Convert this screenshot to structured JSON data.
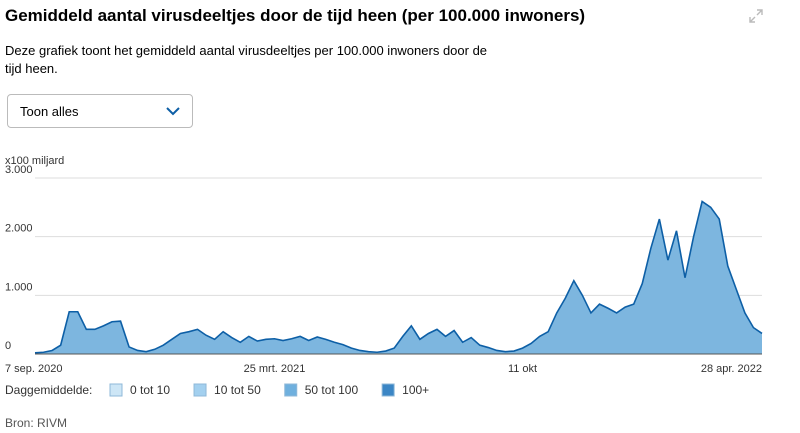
{
  "header": {
    "title": "Gemiddeld aantal virusdeeltjes door de tijd heen (per 100.000 inwoners)",
    "description": "Deze grafiek toont het gemiddeld aantal virusdeeltjes per 100.000 inwoners door de tijd heen."
  },
  "dropdown": {
    "label": "Toon alles"
  },
  "chart_data": {
    "type": "area",
    "y_unit": "x100 miljard",
    "categories": [
      "7 sep. 2020",
      null,
      null,
      null,
      null,
      null,
      null,
      null,
      null,
      null,
      null,
      null,
      null,
      null,
      null,
      null,
      null,
      null,
      null,
      null,
      null,
      null,
      null,
      null,
      null,
      null,
      null,
      null,
      "25 mrt. 2021",
      null,
      null,
      null,
      null,
      null,
      null,
      null,
      null,
      null,
      null,
      null,
      null,
      null,
      null,
      null,
      null,
      null,
      null,
      null,
      null,
      null,
      null,
      null,
      null,
      null,
      null,
      null,
      null,
      "11 okt",
      null,
      null,
      null,
      null,
      null,
      null,
      null,
      null,
      null,
      null,
      null,
      null,
      null,
      null,
      null,
      null,
      null,
      null,
      null,
      null,
      null,
      null,
      null,
      null,
      null,
      null,
      null,
      "28 apr. 2022"
    ],
    "values": [
      20,
      30,
      60,
      150,
      720,
      720,
      420,
      420,
      480,
      550,
      560,
      120,
      60,
      40,
      80,
      150,
      250,
      350,
      380,
      420,
      320,
      250,
      380,
      280,
      200,
      300,
      220,
      250,
      260,
      230,
      260,
      300,
      230,
      290,
      250,
      200,
      160,
      100,
      60,
      40,
      30,
      50,
      100,
      300,
      480,
      250,
      350,
      420,
      300,
      400,
      200,
      280,
      150,
      110,
      60,
      40,
      50,
      100,
      180,
      300,
      380,
      700,
      950,
      1250,
      1000,
      700,
      850,
      780,
      700,
      800,
      850,
      1200,
      1800,
      2300,
      1600,
      2100,
      1300,
      2000,
      2600,
      2500,
      2300,
      1500,
      1100,
      700,
      450,
      350
    ],
    "color": "#7db6df",
    "line_color": "#0d5fa6",
    "ylim": [
      0,
      3000
    ],
    "yticks": [
      0,
      {
        "value": 1000,
        "label": "1.000"
      },
      {
        "value": 2000,
        "label": "2.000"
      },
      {
        "value": 3000,
        "label": "3.000"
      }
    ],
    "grid": true,
    "legend": {
      "title": "Daggemiddelde:",
      "items": [
        {
          "label": "0 tot 10",
          "color": "#cde6f6"
        },
        {
          "label": "10 tot 50",
          "color": "#a3d0ef"
        },
        {
          "label": "50 tot 100",
          "color": "#6fb0de"
        },
        {
          "label": "100+",
          "color": "#3b86c5"
        }
      ]
    }
  },
  "footer": {
    "source": "Bron: RIVM"
  }
}
